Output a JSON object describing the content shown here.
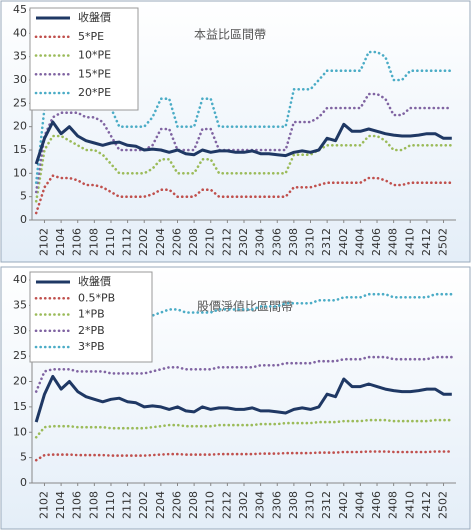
{
  "chart_data": [
    {
      "type": "line",
      "title": "本益比區間帶",
      "categories": [
        null,
        "2102",
        null,
        "2104",
        null,
        "2106",
        null,
        "2108",
        null,
        "2110",
        null,
        "2112",
        null,
        "2202",
        null,
        "2204",
        null,
        "2206",
        null,
        "2208",
        null,
        "2210",
        null,
        "2212",
        null,
        "2302",
        null,
        "2304",
        null,
        "2306",
        null,
        "2308",
        null,
        "2310",
        null,
        "2312",
        null,
        "2402",
        null,
        "2404",
        null,
        "2406",
        null,
        "2408",
        null,
        "2410",
        null,
        "2412",
        null,
        "2502",
        null
      ],
      "ylim": [
        0,
        45
      ],
      "yticks": [
        0,
        5,
        10,
        15,
        20,
        25,
        30,
        35,
        40,
        45
      ],
      "legend": "upper left",
      "grid": false,
      "series": [
        {
          "name": "收盤價",
          "color": "#1f3864",
          "style": "solid",
          "values": [
            12,
            17.5,
            21,
            18.5,
            20,
            18,
            17,
            16.5,
            16,
            16.5,
            16.7,
            16,
            15.8,
            15,
            15.2,
            15,
            14.5,
            15,
            14.2,
            14,
            15,
            14.5,
            14.8,
            14.8,
            14.5,
            14.5,
            14.8,
            14.2,
            14.2,
            14,
            13.8,
            14.5,
            14.8,
            14.5,
            15,
            17.5,
            17,
            20.5,
            19,
            19,
            19.5,
            19,
            18.5,
            18.2,
            18,
            18,
            18.2,
            18.5,
            18.5,
            17.5,
            17.5
          ]
        },
        {
          "name": "5*PE",
          "color": "#c0504d",
          "style": "dotted",
          "values": [
            1.5,
            7,
            9.5,
            9,
            9,
            8.5,
            7.5,
            7.5,
            7,
            6,
            5,
            5,
            5,
            5,
            5.5,
            6.5,
            6.5,
            5,
            5,
            5,
            6.5,
            6.5,
            5,
            5,
            5,
            5,
            5,
            5,
            5,
            5,
            5,
            7,
            7,
            7,
            7.5,
            8,
            8,
            8,
            8,
            8,
            9,
            9,
            8.5,
            7.5,
            7.5,
            8,
            8,
            8,
            8,
            8,
            8
          ]
        },
        {
          "name": "10*PE",
          "color": "#9bbb59",
          "style": "dotted",
          "values": [
            4,
            15,
            18,
            18,
            17,
            16,
            15,
            15,
            14,
            12,
            10,
            10,
            10,
            10,
            11,
            13,
            13,
            10,
            10,
            10,
            13,
            13,
            10,
            10,
            10,
            10,
            10,
            10,
            10,
            10,
            10,
            14,
            14,
            14,
            15,
            16,
            16,
            16,
            16,
            16,
            18,
            18,
            17,
            15,
            15,
            16,
            16,
            16,
            16,
            16,
            16
          ]
        },
        {
          "name": "15*PE",
          "color": "#8064a2",
          "style": "dotted",
          "values": [
            6,
            18,
            22,
            23,
            23,
            23,
            22,
            22,
            21,
            18,
            15,
            15,
            15,
            15,
            16,
            19.5,
            19.5,
            15,
            15,
            15,
            19.5,
            19.5,
            15,
            15,
            15,
            15,
            15,
            15,
            15,
            15,
            15,
            21,
            21,
            21,
            22,
            24,
            24,
            24,
            24,
            24,
            27,
            27,
            26,
            22.5,
            22.5,
            24,
            24,
            24,
            24,
            24,
            24
          ]
        },
        {
          "name": "20*PE",
          "color": "#4bacc6",
          "style": "dotted",
          "values": [
            8,
            24,
            30,
            30,
            30,
            30,
            30,
            30,
            28,
            24,
            20,
            20,
            20,
            20,
            22,
            26,
            26,
            20,
            20,
            20,
            26,
            26,
            20,
            20,
            20,
            20,
            20,
            20,
            20,
            20,
            20,
            28,
            28,
            28,
            30,
            32,
            32,
            32,
            32,
            32,
            36,
            36,
            35,
            30,
            30,
            32,
            32,
            32,
            32,
            32,
            32
          ]
        }
      ]
    },
    {
      "type": "line",
      "title": "股價淨值比區間帶",
      "categories": [
        null,
        "2102",
        null,
        "2104",
        null,
        "2106",
        null,
        "2108",
        null,
        "2110",
        null,
        "2112",
        null,
        "2202",
        null,
        "2204",
        null,
        "2206",
        null,
        "2208",
        null,
        "2210",
        null,
        "2212",
        null,
        "2302",
        null,
        "2304",
        null,
        "2306",
        null,
        "2308",
        null,
        "2310",
        null,
        "2312",
        null,
        "2402",
        null,
        "2404",
        null,
        "2406",
        null,
        "2408",
        null,
        "2410",
        null,
        "2412",
        null,
        "2502",
        null
      ],
      "ylim": [
        0,
        40
      ],
      "yticks": [
        0,
        5,
        10,
        15,
        20,
        25,
        30,
        35,
        40
      ],
      "legend": "upper left",
      "grid": false,
      "series": [
        {
          "name": "收盤價",
          "color": "#1f3864",
          "style": "solid",
          "values": [
            12,
            17.5,
            21,
            18.5,
            20,
            18,
            17,
            16.5,
            16,
            16.5,
            16.7,
            16,
            15.8,
            15,
            15.2,
            15,
            14.5,
            15,
            14.2,
            14,
            15,
            14.5,
            14.8,
            14.8,
            14.5,
            14.5,
            14.8,
            14.2,
            14.2,
            14,
            13.8,
            14.5,
            14.8,
            14.5,
            15,
            17.5,
            17,
            20.5,
            19,
            19,
            19.5,
            19,
            18.5,
            18.2,
            18,
            18,
            18.2,
            18.5,
            18.5,
            17.5,
            17.5
          ]
        },
        {
          "name": "0.5*PB",
          "color": "#c0504d",
          "style": "dotted",
          "values": [
            4.5,
            5.5,
            5.6,
            5.6,
            5.6,
            5.5,
            5.5,
            5.5,
            5.5,
            5.4,
            5.4,
            5.4,
            5.4,
            5.4,
            5.5,
            5.6,
            5.7,
            5.7,
            5.6,
            5.6,
            5.6,
            5.6,
            5.7,
            5.7,
            5.7,
            5.7,
            5.7,
            5.8,
            5.8,
            5.8,
            5.9,
            5.9,
            5.9,
            5.9,
            6,
            6,
            6,
            6.1,
            6.1,
            6.1,
            6.2,
            6.2,
            6.2,
            6.1,
            6.1,
            6.1,
            6.1,
            6.1,
            6.2,
            6.2,
            6.2
          ]
        },
        {
          "name": "1*PB",
          "color": "#9bbb59",
          "style": "dotted",
          "values": [
            9,
            11,
            11.2,
            11.2,
            11.2,
            11,
            11,
            11,
            11,
            10.8,
            10.8,
            10.8,
            10.8,
            10.8,
            11,
            11.2,
            11.4,
            11.4,
            11.2,
            11.2,
            11.2,
            11.2,
            11.4,
            11.4,
            11.4,
            11.4,
            11.4,
            11.6,
            11.6,
            11.6,
            11.8,
            11.8,
            11.8,
            11.8,
            12,
            12,
            12,
            12.2,
            12.2,
            12.2,
            12.4,
            12.4,
            12.4,
            12.2,
            12.2,
            12.2,
            12.2,
            12.2,
            12.4,
            12.4,
            12.4
          ]
        },
        {
          "name": "2*PB",
          "color": "#8064a2",
          "style": "dotted",
          "values": [
            18,
            22,
            22.4,
            22.4,
            22.4,
            22,
            22,
            22,
            22,
            21.6,
            21.6,
            21.6,
            21.6,
            21.6,
            22,
            22.4,
            22.8,
            22.8,
            22.4,
            22.4,
            22.4,
            22.4,
            22.8,
            22.8,
            22.8,
            22.8,
            22.8,
            23.2,
            23.2,
            23.2,
            23.6,
            23.6,
            23.6,
            23.6,
            24,
            24,
            24,
            24.4,
            24.4,
            24.4,
            24.8,
            24.8,
            24.8,
            24.4,
            24.4,
            24.4,
            24.4,
            24.4,
            24.8,
            24.8,
            24.8
          ]
        },
        {
          "name": "3*PB",
          "color": "#4bacc6",
          "style": "dotted",
          "values": [
            27,
            33,
            33.6,
            33.6,
            33.6,
            33,
            33,
            33,
            33,
            32.4,
            32.4,
            32.4,
            32.4,
            32.4,
            33,
            33.6,
            34.2,
            34.2,
            33.6,
            33.6,
            33.6,
            33.6,
            34.2,
            34.2,
            34.2,
            34.2,
            34.2,
            34.8,
            34.8,
            34.8,
            35.4,
            35.4,
            35.4,
            35.4,
            36,
            36,
            36,
            36.6,
            36.6,
            36.6,
            37.2,
            37.2,
            37.2,
            36.6,
            36.6,
            36.6,
            36.6,
            36.6,
            37.2,
            37.2,
            37.2
          ]
        }
      ]
    }
  ]
}
